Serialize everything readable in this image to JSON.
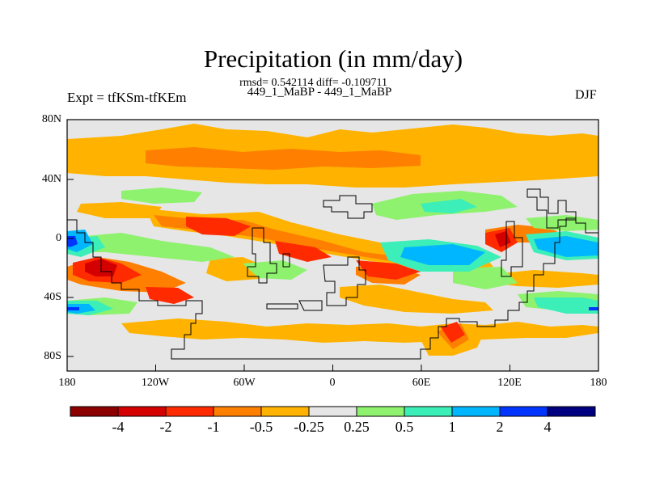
{
  "title": "Precipitation (in mm/day)",
  "stats_line": "rmsd= 0.542114 diff= -0.109711",
  "experiment_names": "449_1_MaBP - 449_1_MaBP",
  "experiment_label": "Expt = tfKSm-tfKEm",
  "season": "DJF",
  "latitude_labels": [
    "80N",
    "40N",
    "0",
    "40S",
    "80S"
  ],
  "longitude_labels": [
    "180",
    "120W",
    "60W",
    "0",
    "60E",
    "120E",
    "180"
  ],
  "colorbar": {
    "colors": [
      "#8c0000",
      "#d40000",
      "#ff2a00",
      "#ff7f00",
      "#ffb300",
      "#e6e6e6",
      "#8ef26e",
      "#3ceeb7",
      "#00b7ff",
      "#0034ff",
      "#000080"
    ],
    "labels": [
      "-4",
      "-2",
      "-1",
      "-0.5",
      "-0.25",
      "0.25",
      "0.5",
      "1",
      "2",
      "4"
    ]
  },
  "map_background_color": "#e6e6e6"
}
